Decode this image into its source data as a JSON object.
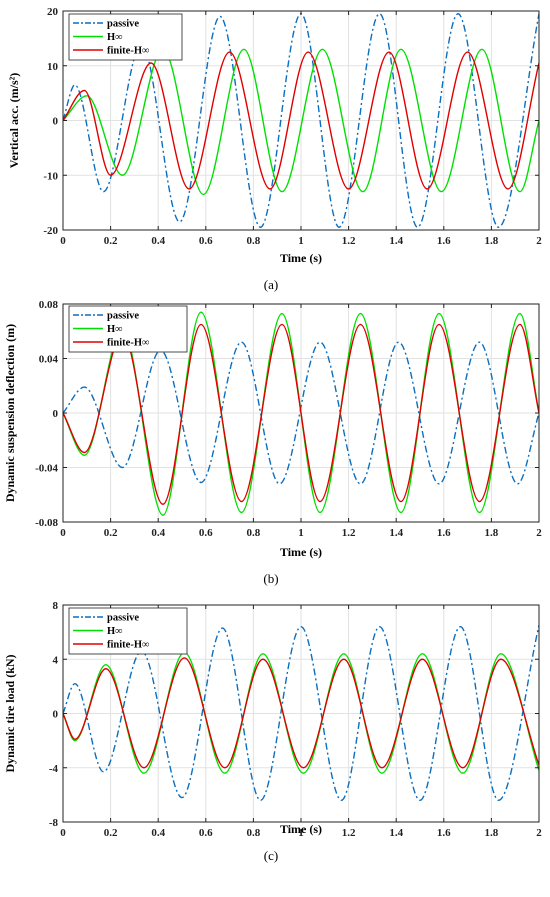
{
  "colors": {
    "passive": "#0b6fbf",
    "hinf": "#00e000",
    "finite": "#e00000",
    "grid": "#e2e2e2"
  },
  "chart_data": [
    {
      "type": "line",
      "caption": "(a)",
      "xlabel": "Time (s)",
      "ylabel": "Vertical acc. (m/s²)",
      "xlim": [
        0,
        2
      ],
      "ylim": [
        -20,
        20
      ],
      "xticks": [
        "0",
        "0.2",
        "0.4",
        "0.6",
        "0.8",
        "1",
        "1.2",
        "1.4",
        "1.6",
        "1.8",
        "2"
      ],
      "yticks": [
        "20",
        "10",
        "0",
        "-10",
        "-20"
      ],
      "grid": true,
      "legend_position": "top-left",
      "series": [
        {
          "name": "passive",
          "style": "dashdot",
          "color": "passive",
          "x": [
            0,
            0.05,
            0.17,
            0.33,
            0.49,
            0.66,
            0.83,
            1.0,
            1.16,
            1.33,
            1.49,
            1.66,
            1.83,
            2.0
          ],
          "y": [
            0,
            6.5,
            -13,
            14,
            -18.5,
            19,
            -19.5,
            19.5,
            -19.5,
            19.5,
            -19.5,
            19.5,
            -19.5,
            19.5
          ]
        },
        {
          "name": "H∞",
          "style": "solid",
          "color": "hinf",
          "x": [
            0,
            0.1,
            0.25,
            0.42,
            0.59,
            0.76,
            0.92,
            1.09,
            1.26,
            1.42,
            1.59,
            1.76,
            1.92,
            2.0
          ],
          "y": [
            0,
            4.5,
            -10,
            13,
            -13.5,
            13,
            -13,
            13,
            -13,
            13,
            -13,
            13,
            -13,
            0
          ]
        },
        {
          "name": "finite-H∞",
          "style": "solid",
          "color": "finite",
          "x": [
            0,
            0.09,
            0.2,
            0.37,
            0.53,
            0.7,
            0.87,
            1.03,
            1.2,
            1.37,
            1.53,
            1.7,
            1.87,
            2.0
          ],
          "y": [
            0,
            5.5,
            -10,
            10.5,
            -12.5,
            12.5,
            -12.5,
            12.5,
            -12.5,
            12.5,
            -12.5,
            12.5,
            -12.5,
            10.5
          ]
        }
      ]
    },
    {
      "type": "line",
      "caption": "(b)",
      "xlabel": "Time (s)",
      "ylabel": "Dynamic suspension deflection (m)",
      "xlim": [
        0,
        2
      ],
      "ylim": [
        -0.08,
        0.08
      ],
      "xticks": [
        "0",
        "0.2",
        "0.4",
        "0.6",
        "0.8",
        "1",
        "1.2",
        "1.4",
        "1.6",
        "1.8",
        "2"
      ],
      "yticks": [
        "0.08",
        "0.04",
        "0",
        "-0.04",
        "-0.08"
      ],
      "grid": true,
      "legend_position": "top-left",
      "series": [
        {
          "name": "passive",
          "style": "dashdot",
          "color": "passive",
          "x": [
            0,
            0.09,
            0.25,
            0.41,
            0.58,
            0.75,
            0.91,
            1.08,
            1.25,
            1.41,
            1.58,
            1.75,
            1.91,
            2.0
          ],
          "y": [
            0,
            0.019,
            -0.04,
            0.046,
            -0.051,
            0.052,
            -0.052,
            0.052,
            -0.052,
            0.052,
            -0.052,
            0.052,
            -0.052,
            0
          ]
        },
        {
          "name": "H∞",
          "style": "solid",
          "color": "hinf",
          "x": [
            0,
            0.09,
            0.25,
            0.42,
            0.58,
            0.75,
            0.92,
            1.08,
            1.25,
            1.42,
            1.58,
            1.75,
            1.92,
            2.0
          ],
          "y": [
            0,
            -0.031,
            0.062,
            -0.075,
            0.074,
            -0.073,
            0.073,
            -0.073,
            0.073,
            -0.073,
            0.073,
            -0.073,
            0.073,
            0
          ]
        },
        {
          "name": "finite-H∞",
          "style": "solid",
          "color": "finite",
          "x": [
            0,
            0.09,
            0.25,
            0.42,
            0.58,
            0.75,
            0.92,
            1.08,
            1.25,
            1.42,
            1.58,
            1.75,
            1.92,
            2.0
          ],
          "y": [
            0,
            -0.029,
            0.058,
            -0.067,
            0.065,
            -0.065,
            0.065,
            -0.065,
            0.065,
            -0.065,
            0.065,
            -0.065,
            0.065,
            0
          ]
        }
      ]
    },
    {
      "type": "line",
      "caption": "(c)",
      "xlabel": "Time (s)",
      "ylabel": "Dynamic tire load (kN)",
      "xlim": [
        0,
        2
      ],
      "ylim": [
        -8,
        8
      ],
      "xticks": [
        "0",
        "0.2",
        "0.4",
        "0.6",
        "0.8",
        "1",
        "1.2",
        "1.4",
        "1.6",
        "1.8",
        "2"
      ],
      "yticks": [
        "8",
        "4",
        "0",
        "-4",
        "-8"
      ],
      "grid": true,
      "legend_position": "top-left",
      "series": [
        {
          "name": "passive",
          "style": "dashdot",
          "color": "passive",
          "x": [
            0,
            0.05,
            0.17,
            0.33,
            0.5,
            0.67,
            0.83,
            1.0,
            1.17,
            1.33,
            1.5,
            1.67,
            1.83,
            2.0
          ],
          "y": [
            0,
            2.2,
            -4.3,
            4.6,
            -6.2,
            6.3,
            -6.4,
            6.4,
            -6.4,
            6.4,
            -6.4,
            6.4,
            -6.4,
            6.5
          ]
        },
        {
          "name": "H∞",
          "style": "solid",
          "color": "hinf",
          "x": [
            0,
            0.05,
            0.18,
            0.34,
            0.51,
            0.68,
            0.84,
            1.01,
            1.18,
            1.34,
            1.51,
            1.68,
            1.84,
            2.0
          ],
          "y": [
            0,
            -2,
            3.6,
            -4.4,
            4.5,
            -4.4,
            4.4,
            -4.4,
            4.4,
            -4.4,
            4.4,
            -4.4,
            4.4,
            -4.2
          ]
        },
        {
          "name": "finite-H∞",
          "style": "solid",
          "color": "finite",
          "x": [
            0,
            0.05,
            0.18,
            0.34,
            0.51,
            0.68,
            0.84,
            1.01,
            1.18,
            1.34,
            1.51,
            1.68,
            1.84,
            2.0
          ],
          "y": [
            0,
            -1.9,
            3.3,
            -4.0,
            4.1,
            -4.0,
            4.0,
            -4.0,
            4.0,
            -4.0,
            4.0,
            -4.0,
            4.0,
            -3.8
          ]
        }
      ]
    }
  ]
}
